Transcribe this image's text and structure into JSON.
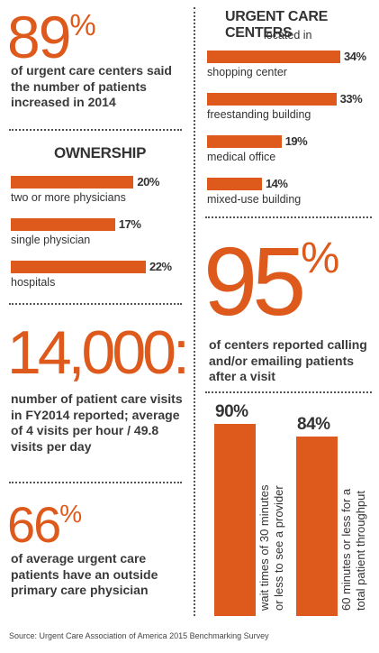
{
  "stat_89": {
    "number": "89",
    "unit": "%",
    "text": "of urgent care centers said the number of patients increased in 2014"
  },
  "ownership": {
    "heading": "OWNERSHIP",
    "items": [
      {
        "label": "two or more physicians",
        "value": 20,
        "display": "20%"
      },
      {
        "label": "single physician",
        "value": 17,
        "display": "17%"
      },
      {
        "label": "hospitals",
        "value": 22,
        "display": "22%"
      }
    ]
  },
  "stat_14000": {
    "number": "14,000:",
    "text": "number of patient care visits in FY2014 reported; average of 4 visits per hour / 49.8 visits per day"
  },
  "stat_66": {
    "number": "66",
    "unit": "%",
    "text": "of average urgent care patients have an outside primary care physician"
  },
  "location": {
    "heading": "URGENT CARE CENTERS",
    "subheading": "located in",
    "items": [
      {
        "label": "shopping center",
        "value": 34,
        "display": "34%"
      },
      {
        "label": "freestanding building",
        "value": 33,
        "display": "33%"
      },
      {
        "label": "medical office",
        "value": 19,
        "display": "19%"
      },
      {
        "label": "mixed-use building",
        "value": 14,
        "display": "14%"
      }
    ]
  },
  "stat_95": {
    "number": "95",
    "unit": "%",
    "text": "of centers reported calling and/or emailing patients after a visit"
  },
  "wait_times": {
    "items": [
      {
        "value": 90,
        "display": "90%",
        "label_line1": "wait times of 30 minutes",
        "label_line2": "or less to see a provider"
      },
      {
        "value": 84,
        "display": "84%",
        "label_line1": "60 minutes or less for a",
        "label_line2": "total patient throughput"
      }
    ]
  },
  "source": "Source: Urgent Care Association of America 2015 Benchmarking Survey",
  "colors": {
    "accent": "#de5a1c",
    "text": "#333333"
  },
  "chart_data": [
    {
      "type": "bar",
      "title": "OWNERSHIP",
      "categories": [
        "two or more physicians",
        "single physician",
        "hospitals"
      ],
      "values": [
        20,
        17,
        22
      ]
    },
    {
      "type": "bar",
      "title": "URGENT CARE CENTERS",
      "subtitle": "located in",
      "categories": [
        "shopping center",
        "freestanding building",
        "medical office",
        "mixed-use building"
      ],
      "values": [
        34,
        33,
        19,
        14
      ]
    },
    {
      "type": "bar",
      "categories": [
        "wait times of 30 minutes or less to see a provider",
        "60 minutes or less for a total patient throughput"
      ],
      "values": [
        90,
        84
      ]
    }
  ]
}
